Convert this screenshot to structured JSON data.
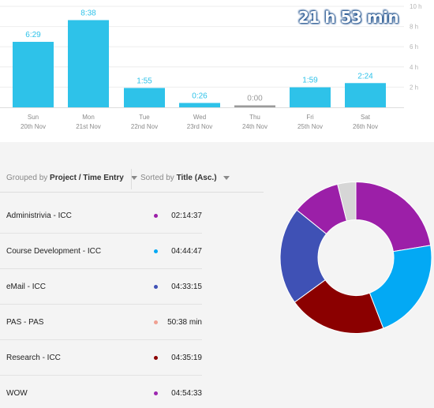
{
  "summary": {
    "total": "21 h 53 min"
  },
  "chart_data": {
    "type": "bar",
    "categories": [
      "Sun",
      "Mon",
      "Tue",
      "Wed",
      "Thu",
      "Fri",
      "Sat"
    ],
    "dates": [
      "20th Nov",
      "21st Nov",
      "22nd Nov",
      "23rd Nov",
      "24th Nov",
      "25th Nov",
      "26th Nov"
    ],
    "values": [
      6.483,
      8.633,
      1.917,
      0.433,
      0,
      1.983,
      2.4
    ],
    "value_labels": [
      "6:29",
      "8:38",
      "1:55",
      "0:26",
      "0:00",
      "1:59",
      "2:24"
    ],
    "y_ticks": [
      2,
      4,
      6,
      8,
      10
    ],
    "y_tick_labels": [
      "2 h",
      "4 h",
      "6 h",
      "8 h",
      "10 h"
    ],
    "ylim": [
      0,
      10
    ],
    "grid": true,
    "colors": {
      "bar": "#2ec2e9",
      "bar_empty": "#9a9a9a",
      "label": "#2ec2e9"
    }
  },
  "toolbar": {
    "group_prefix": "Grouped by",
    "group_value": "Project / Time Entry",
    "sort_prefix": "Sorted by",
    "sort_value": "Title (Asc.)"
  },
  "entries": [
    {
      "title": "Administrivia - ICC",
      "duration": "02:14:37",
      "color": "#9b1fa8"
    },
    {
      "title": "Course Development - ICC",
      "duration": "04:44:47",
      "color": "#03a9f4"
    },
    {
      "title": "eMail - ICC",
      "duration": "04:33:15",
      "color": "#3f51b5"
    },
    {
      "title": "PAS - PAS",
      "duration": "50:38 min",
      "color": "#f0a092"
    },
    {
      "title": "Research - ICC",
      "duration": "04:35:19",
      "color": "#8b0000"
    },
    {
      "title": "WOW",
      "duration": "04:54:33",
      "color": "#9c27b0"
    }
  ],
  "donut": {
    "slices": [
      {
        "value": 22.4,
        "color": "#9c1fa8"
      },
      {
        "value": 21.7,
        "color": "#03a9f4"
      },
      {
        "value": 20.9,
        "color": "#8b0000"
      },
      {
        "value": 20.8,
        "color": "#3f51b5"
      },
      {
        "value": 10.3,
        "color": "#9b1fa8"
      },
      {
        "value": 3.9,
        "color": "#d6d6d6"
      }
    ]
  }
}
